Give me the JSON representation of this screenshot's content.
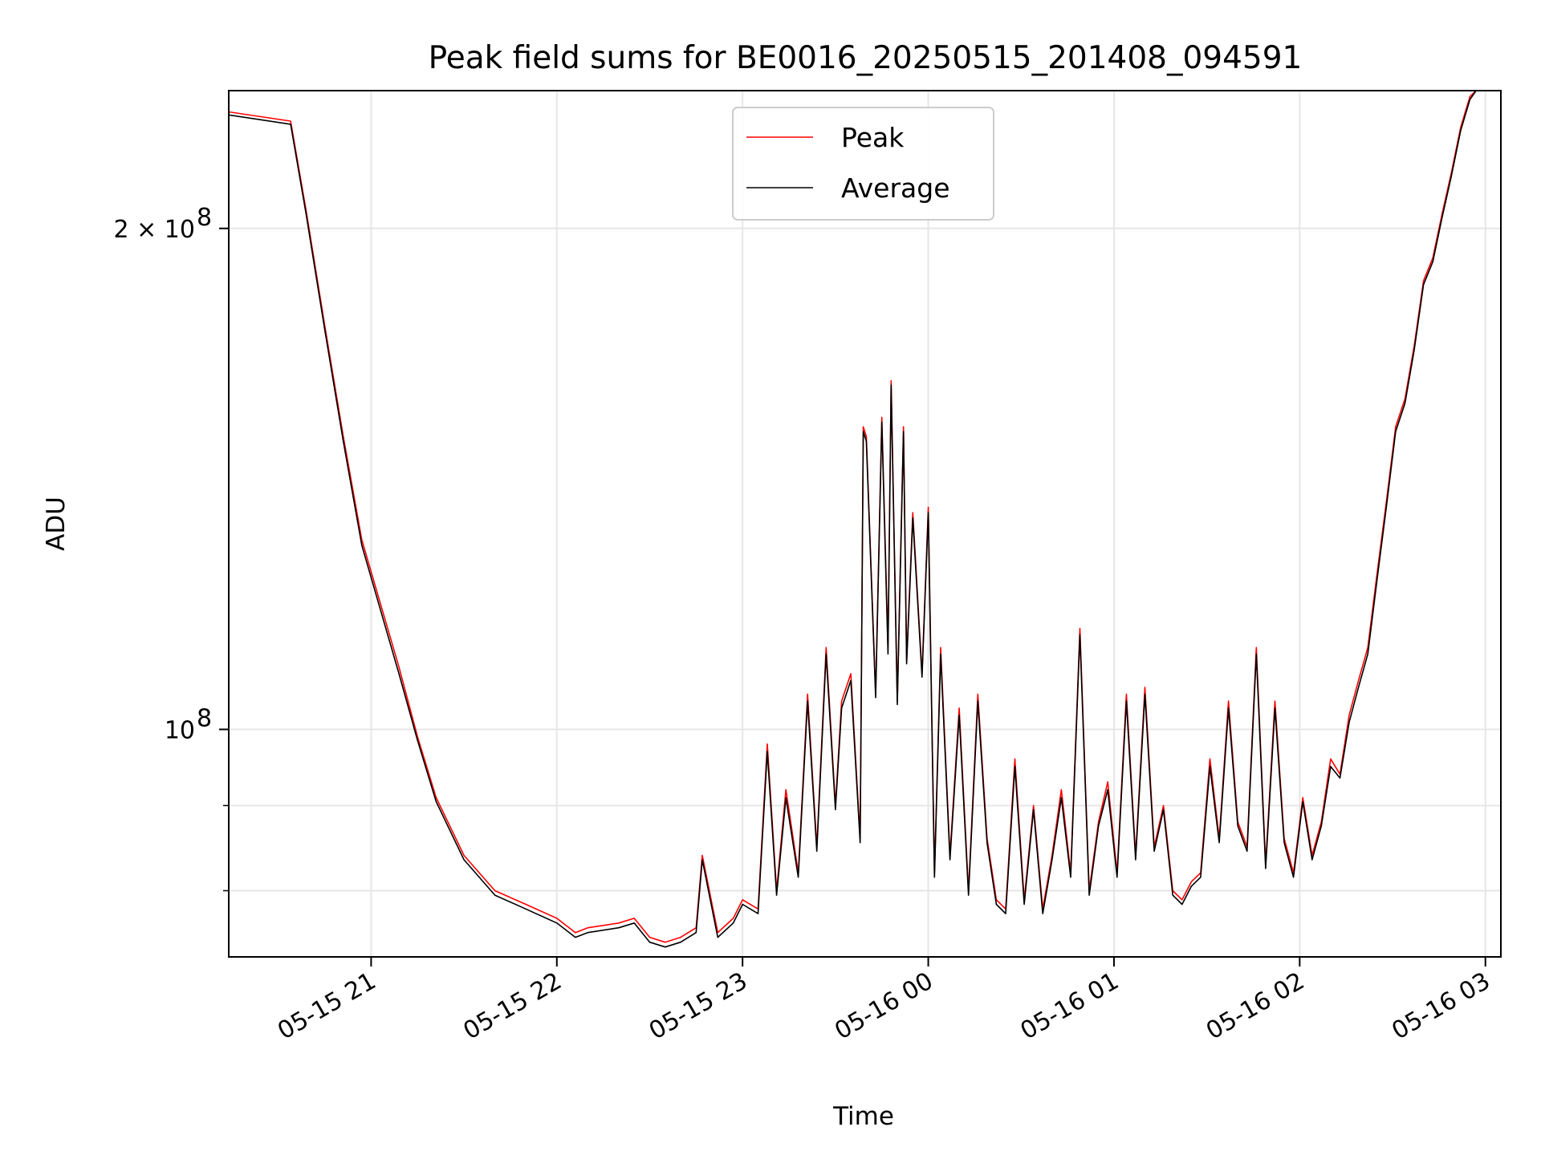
{
  "chart_data": {
    "type": "line",
    "title": "Peak field sums for BE0016_20250515_201408_094591",
    "xlabel": "Time",
    "ylabel": "ADU",
    "x_type": "datetime",
    "xlim": [
      "2025-05-15 20:14",
      "2025-05-16 03:05"
    ],
    "ylim": [
      73000000,
      242000000
    ],
    "y_scale": "log",
    "grid": true,
    "legend_position": "top-center",
    "x_ticks": [
      {
        "value": "2025-05-15 21:00",
        "label": "05-15 21"
      },
      {
        "value": "2025-05-15 22:00",
        "label": "05-15 22"
      },
      {
        "value": "2025-05-15 23:00",
        "label": "05-15 23"
      },
      {
        "value": "2025-05-16 00:00",
        "label": "05-16 00"
      },
      {
        "value": "2025-05-16 01:00",
        "label": "05-16 01"
      },
      {
        "value": "2025-05-16 02:00",
        "label": "05-16 02"
      },
      {
        "value": "2025-05-16 03:00",
        "label": "05-16 03"
      }
    ],
    "y_ticks": [
      {
        "value": 100000000,
        "label": "10",
        "exp": "8",
        "prefix": ""
      },
      {
        "value": 200000000,
        "label": "2 × 10",
        "exp": "8",
        "prefix": ""
      }
    ],
    "y_minor_ticks": [
      80000000,
      90000000
    ],
    "series": [
      {
        "name": "Peak",
        "color": "#ff0000",
        "x": [
          "2025-05-15 20:14",
          "2025-05-15 20:34",
          "2025-05-15 20:39",
          "2025-05-15 20:45",
          "2025-05-15 20:51",
          "2025-05-15 20:57",
          "2025-05-15 21:03",
          "2025-05-15 21:09",
          "2025-05-15 21:15",
          "2025-05-15 21:21",
          "2025-05-15 21:30",
          "2025-05-15 21:40",
          "2025-05-15 21:50",
          "2025-05-15 22:00",
          "2025-05-15 22:06",
          "2025-05-15 22:10",
          "2025-05-15 22:20",
          "2025-05-15 22:25",
          "2025-05-15 22:30",
          "2025-05-15 22:35",
          "2025-05-15 22:40",
          "2025-05-15 22:45",
          "2025-05-15 22:47",
          "2025-05-15 22:52",
          "2025-05-15 22:57",
          "2025-05-15 23:00",
          "2025-05-15 23:05",
          "2025-05-15 23:08",
          "2025-05-15 23:11",
          "2025-05-15 23:14",
          "2025-05-15 23:18",
          "2025-05-15 23:21",
          "2025-05-15 23:24",
          "2025-05-15 23:27",
          "2025-05-15 23:30",
          "2025-05-15 23:32",
          "2025-05-15 23:35",
          "2025-05-15 23:38",
          "2025-05-15 23:39",
          "2025-05-15 23:40",
          "2025-05-15 23:43",
          "2025-05-15 23:45",
          "2025-05-15 23:47",
          "2025-05-15 23:48",
          "2025-05-15 23:50",
          "2025-05-15 23:52",
          "2025-05-15 23:53",
          "2025-05-15 23:55",
          "2025-05-15 23:58",
          "2025-05-16 00:00",
          "2025-05-16 00:02",
          "2025-05-16 00:04",
          "2025-05-16 00:07",
          "2025-05-16 00:10",
          "2025-05-16 00:13",
          "2025-05-16 00:16",
          "2025-05-16 00:19",
          "2025-05-16 00:22",
          "2025-05-16 00:25",
          "2025-05-16 00:28",
          "2025-05-16 00:31",
          "2025-05-16 00:34",
          "2025-05-16 00:37",
          "2025-05-16 00:40",
          "2025-05-16 00:43",
          "2025-05-16 00:46",
          "2025-05-16 00:49",
          "2025-05-16 00:52",
          "2025-05-16 00:55",
          "2025-05-16 00:58",
          "2025-05-16 01:01",
          "2025-05-16 01:04",
          "2025-05-16 01:07",
          "2025-05-16 01:10",
          "2025-05-16 01:13",
          "2025-05-16 01:16",
          "2025-05-16 01:19",
          "2025-05-16 01:22",
          "2025-05-16 01:25",
          "2025-05-16 01:28",
          "2025-05-16 01:31",
          "2025-05-16 01:34",
          "2025-05-16 01:37",
          "2025-05-16 01:40",
          "2025-05-16 01:43",
          "2025-05-16 01:46",
          "2025-05-16 01:49",
          "2025-05-16 01:52",
          "2025-05-16 01:55",
          "2025-05-16 01:58",
          "2025-05-16 02:01",
          "2025-05-16 02:04",
          "2025-05-16 02:07",
          "2025-05-16 02:10",
          "2025-05-16 02:13",
          "2025-05-16 02:16",
          "2025-05-16 02:19",
          "2025-05-16 02:22",
          "2025-05-16 02:25",
          "2025-05-16 02:28",
          "2025-05-16 02:31",
          "2025-05-16 02:34",
          "2025-05-16 02:37",
          "2025-05-16 02:40",
          "2025-05-16 02:43",
          "2025-05-16 02:46",
          "2025-05-16 02:49",
          "2025-05-16 02:52",
          "2025-05-16 02:55",
          "2025-05-16 02:57"
        ],
        "values": [
          235000000,
          232000000,
          205000000,
          175000000,
          150000000,
          130000000,
          119000000,
          109000000,
          99000000,
          91000000,
          84000000,
          80000000,
          78500000,
          77000000,
          75500000,
          76000000,
          76500000,
          77000000,
          75000000,
          74500000,
          75000000,
          76000000,
          84000000,
          75500000,
          77000000,
          79000000,
          78000000,
          98000000,
          80000000,
          92000000,
          82000000,
          105000000,
          85000000,
          112000000,
          90000000,
          104000000,
          108000000,
          86000000,
          152000000,
          150000000,
          105000000,
          154000000,
          112000000,
          162000000,
          104000000,
          152000000,
          110000000,
          135000000,
          108000000,
          136000000,
          82000000,
          112000000,
          84000000,
          103000000,
          80000000,
          105000000,
          86000000,
          79000000,
          78000000,
          96000000,
          79000000,
          90000000,
          78000000,
          84000000,
          92000000,
          82000000,
          115000000,
          80000000,
          88000000,
          93000000,
          82000000,
          105000000,
          84000000,
          106000000,
          85000000,
          90000000,
          80000000,
          79000000,
          81000000,
          82000000,
          96000000,
          86000000,
          104000000,
          88000000,
          85000000,
          112000000,
          83000000,
          104000000,
          86000000,
          82000000,
          91000000,
          84000000,
          88000000,
          96000000,
          94000000,
          102000000,
          107000000,
          112000000,
          124000000,
          137000000,
          152000000,
          158000000,
          170000000,
          186000000,
          192000000,
          204000000,
          216000000,
          230000000,
          240000000,
          242000000
        ]
      },
      {
        "name": "Average",
        "color": "#000000",
        "x": [
          "2025-05-15 20:14",
          "2025-05-15 20:34",
          "2025-05-15 20:39",
          "2025-05-15 20:45",
          "2025-05-15 20:51",
          "2025-05-15 20:57",
          "2025-05-15 21:03",
          "2025-05-15 21:09",
          "2025-05-15 21:15",
          "2025-05-15 21:21",
          "2025-05-15 21:30",
          "2025-05-15 21:40",
          "2025-05-15 21:50",
          "2025-05-15 22:00",
          "2025-05-15 22:06",
          "2025-05-15 22:10",
          "2025-05-15 22:20",
          "2025-05-15 22:25",
          "2025-05-15 22:30",
          "2025-05-15 22:35",
          "2025-05-15 22:40",
          "2025-05-15 22:45",
          "2025-05-15 22:47",
          "2025-05-15 22:52",
          "2025-05-15 22:57",
          "2025-05-15 23:00",
          "2025-05-15 23:05",
          "2025-05-15 23:08",
          "2025-05-15 23:11",
          "2025-05-15 23:14",
          "2025-05-15 23:18",
          "2025-05-15 23:21",
          "2025-05-15 23:24",
          "2025-05-15 23:27",
          "2025-05-15 23:30",
          "2025-05-15 23:32",
          "2025-05-15 23:35",
          "2025-05-15 23:38",
          "2025-05-15 23:39",
          "2025-05-15 23:40",
          "2025-05-15 23:43",
          "2025-05-15 23:45",
          "2025-05-15 23:47",
          "2025-05-15 23:48",
          "2025-05-15 23:50",
          "2025-05-15 23:52",
          "2025-05-15 23:53",
          "2025-05-15 23:55",
          "2025-05-15 23:58",
          "2025-05-16 00:00",
          "2025-05-16 00:02",
          "2025-05-16 00:04",
          "2025-05-16 00:07",
          "2025-05-16 00:10",
          "2025-05-16 00:13",
          "2025-05-16 00:16",
          "2025-05-16 00:19",
          "2025-05-16 00:22",
          "2025-05-16 00:25",
          "2025-05-16 00:28",
          "2025-05-16 00:31",
          "2025-05-16 00:34",
          "2025-05-16 00:37",
          "2025-05-16 00:40",
          "2025-05-16 00:43",
          "2025-05-16 00:46",
          "2025-05-16 00:49",
          "2025-05-16 00:52",
          "2025-05-16 00:55",
          "2025-05-16 00:58",
          "2025-05-16 01:01",
          "2025-05-16 01:04",
          "2025-05-16 01:07",
          "2025-05-16 01:10",
          "2025-05-16 01:13",
          "2025-05-16 01:16",
          "2025-05-16 01:19",
          "2025-05-16 01:22",
          "2025-05-16 01:25",
          "2025-05-16 01:28",
          "2025-05-16 01:31",
          "2025-05-16 01:34",
          "2025-05-16 01:37",
          "2025-05-16 01:40",
          "2025-05-16 01:43",
          "2025-05-16 01:46",
          "2025-05-16 01:49",
          "2025-05-16 01:52",
          "2025-05-16 01:55",
          "2025-05-16 01:58",
          "2025-05-16 02:01",
          "2025-05-16 02:04",
          "2025-05-16 02:07",
          "2025-05-16 02:10",
          "2025-05-16 02:13",
          "2025-05-16 02:16",
          "2025-05-16 02:19",
          "2025-05-16 02:22",
          "2025-05-16 02:25",
          "2025-05-16 02:28",
          "2025-05-16 02:31",
          "2025-05-16 02:34",
          "2025-05-16 02:37",
          "2025-05-16 02:40",
          "2025-05-16 02:43",
          "2025-05-16 02:46",
          "2025-05-16 02:49",
          "2025-05-16 02:52",
          "2025-05-16 02:55",
          "2025-05-16 02:57"
        ],
        "values": [
          234000000,
          231000000,
          204000000,
          174000000,
          149000000,
          129000000,
          118000000,
          108000000,
          98500000,
          90500000,
          83500000,
          79500000,
          78000000,
          76500000,
          75000000,
          75500000,
          76000000,
          76500000,
          74500000,
          74000000,
          74500000,
          75500000,
          83500000,
          75000000,
          76500000,
          78500000,
          77500000,
          97000000,
          79500000,
          91000000,
          81500000,
          104000000,
          84500000,
          111000000,
          89500000,
          103000000,
          107000000,
          85500000,
          151000000,
          149000000,
          104500000,
          153000000,
          111000000,
          161000000,
          103500000,
          151000000,
          109500000,
          134000000,
          107500000,
          135000000,
          81500000,
          111000000,
          83500000,
          102000000,
          79500000,
          104000000,
          85500000,
          78500000,
          77500000,
          95000000,
          78500000,
          89500000,
          77500000,
          83500000,
          91000000,
          81500000,
          114000000,
          79500000,
          87500000,
          92000000,
          81500000,
          104000000,
          83500000,
          105000000,
          84500000,
          89500000,
          79500000,
          78500000,
          80500000,
          81500000,
          95000000,
          85500000,
          103000000,
          87500000,
          84500000,
          111000000,
          82500000,
          103000000,
          85500000,
          81500000,
          90500000,
          83500000,
          87500000,
          95000000,
          93500000,
          101000000,
          106000000,
          111000000,
          123000000,
          136000000,
          151000000,
          157000000,
          169000000,
          185000000,
          191000000,
          203000000,
          215000000,
          229000000,
          239000000,
          242000000
        ]
      }
    ]
  }
}
